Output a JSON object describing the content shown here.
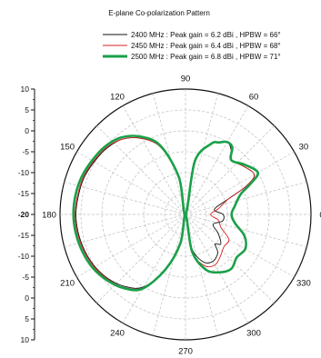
{
  "chart_data": {
    "type": "line",
    "polar": true,
    "title": "E-plane Co-polarization Pattern",
    "angle_unit": "degrees",
    "angle_ticks": [
      "0",
      "30",
      "60",
      "90",
      "120",
      "150",
      "180",
      "210",
      "240",
      "270",
      "300",
      "330"
    ],
    "radial_range_dBi": [
      -20,
      10
    ],
    "radial_ticks": [
      "10",
      "5",
      "0",
      "-5",
      "-10",
      "-15",
      "-20",
      "-15",
      "-10",
      "-5",
      "0",
      "5",
      "10"
    ],
    "grid": true,
    "legend_position": "top",
    "series": [
      {
        "name": "2400 MHz : Peak gain = 6.2 dBi , HPBW = 66°",
        "color": "#111111",
        "points": [
          [
            0,
            -11
          ],
          [
            10,
            -13
          ],
          [
            20,
            -9
          ],
          [
            25,
            -4
          ],
          [
            30,
            -1
          ],
          [
            40,
            -2
          ],
          [
            50,
            -3
          ],
          [
            55,
            -1
          ],
          [
            60,
            0
          ],
          [
            65,
            -1
          ],
          [
            70,
            -2
          ],
          [
            80,
            -7
          ],
          [
            90,
            -20
          ],
          [
            100,
            -11
          ],
          [
            110,
            -3
          ],
          [
            120,
            1
          ],
          [
            130,
            3.5
          ],
          [
            140,
            4.6
          ],
          [
            150,
            5.2
          ],
          [
            160,
            5.8
          ],
          [
            170,
            6.0
          ],
          [
            180,
            6.2
          ],
          [
            190,
            6.0
          ],
          [
            200,
            5.6
          ],
          [
            210,
            5.0
          ],
          [
            220,
            4.0
          ],
          [
            230,
            2.5
          ],
          [
            240,
            0
          ],
          [
            250,
            -6
          ],
          [
            260,
            -13
          ],
          [
            270,
            -20
          ],
          [
            280,
            -12
          ],
          [
            290,
            -8
          ],
          [
            300,
            -7
          ],
          [
            310,
            -8
          ],
          [
            315,
            -10
          ],
          [
            320,
            -9
          ],
          [
            330,
            -11
          ],
          [
            340,
            -13
          ],
          [
            350,
            -11
          ],
          [
            360,
            -11
          ]
        ]
      },
      {
        "name": "2450 MHz : Peak gain = 6.4 dBi , HPBW = 68°",
        "color": "#d42020",
        "points": [
          [
            0,
            -14
          ],
          [
            10,
            -12
          ],
          [
            20,
            -9
          ],
          [
            25,
            -4
          ],
          [
            30,
            -1
          ],
          [
            40,
            -2
          ],
          [
            50,
            -3
          ],
          [
            55,
            -0.5
          ],
          [
            60,
            0
          ],
          [
            65,
            -1
          ],
          [
            70,
            -2
          ],
          [
            80,
            -7
          ],
          [
            90,
            -20
          ],
          [
            100,
            -11
          ],
          [
            110,
            -3
          ],
          [
            120,
            1
          ],
          [
            130,
            3.5
          ],
          [
            140,
            4.8
          ],
          [
            150,
            5.4
          ],
          [
            160,
            6.0
          ],
          [
            170,
            6.2
          ],
          [
            180,
            6.4
          ],
          [
            190,
            6.2
          ],
          [
            200,
            5.8
          ],
          [
            210,
            5.2
          ],
          [
            220,
            4.2
          ],
          [
            230,
            2.8
          ],
          [
            240,
            0.2
          ],
          [
            250,
            -6
          ],
          [
            260,
            -13
          ],
          [
            270,
            -20
          ],
          [
            280,
            -11
          ],
          [
            290,
            -7
          ],
          [
            300,
            -6
          ],
          [
            310,
            -7
          ],
          [
            320,
            -8
          ],
          [
            330,
            -8
          ],
          [
            340,
            -11
          ],
          [
            350,
            -12
          ],
          [
            360,
            -14
          ]
        ]
      },
      {
        "name": "2500 MHz : Peak gain = 6.8 dBi , HPBW = 71°",
        "color": "#19a049",
        "points": [
          [
            0,
            -9
          ],
          [
            10,
            -8
          ],
          [
            20,
            -6
          ],
          [
            25,
            -3
          ],
          [
            30,
            0
          ],
          [
            40,
            -1.5
          ],
          [
            50,
            -3
          ],
          [
            55,
            -0.5
          ],
          [
            60,
            0
          ],
          [
            65,
            -1
          ],
          [
            70,
            -2
          ],
          [
            80,
            -7
          ],
          [
            90,
            -20
          ],
          [
            100,
            -11
          ],
          [
            110,
            -2.5
          ],
          [
            120,
            1.5
          ],
          [
            130,
            4.0
          ],
          [
            140,
            5.2
          ],
          [
            150,
            5.8
          ],
          [
            160,
            6.4
          ],
          [
            170,
            6.7
          ],
          [
            180,
            6.8
          ],
          [
            190,
            6.6
          ],
          [
            200,
            6.2
          ],
          [
            210,
            5.6
          ],
          [
            220,
            4.5
          ],
          [
            230,
            3.0
          ],
          [
            240,
            0.5
          ],
          [
            250,
            -6
          ],
          [
            260,
            -13
          ],
          [
            270,
            -20
          ],
          [
            280,
            -11
          ],
          [
            290,
            -6
          ],
          [
            300,
            -4
          ],
          [
            310,
            -3
          ],
          [
            320,
            -4
          ],
          [
            330,
            -3.5
          ],
          [
            340,
            -5
          ],
          [
            350,
            -8
          ],
          [
            360,
            -9
          ]
        ]
      }
    ]
  }
}
